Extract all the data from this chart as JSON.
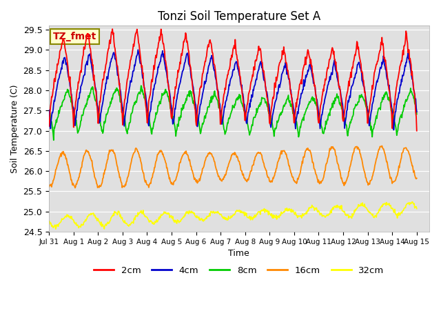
{
  "title": "Tonzi Soil Temperature Set A",
  "xlabel": "Time",
  "ylabel": "Soil Temperature (C)",
  "annotation": "TZ_fmet",
  "ylim": [
    24.5,
    29.6
  ],
  "xlim_days": 15.5,
  "bg_color": "#e0e0e0",
  "grid_color": "#ffffff",
  "series_colors": {
    "2cm": "#ff0000",
    "4cm": "#0000cc",
    "8cm": "#00cc00",
    "16cm": "#ff8800",
    "32cm": "#ffff00"
  },
  "x_tick_labels": [
    "Jul 31",
    "Aug 1",
    "Aug 2",
    "Aug 3",
    "Aug 4",
    "Aug 5",
    "Aug 6",
    "Aug 7",
    "Aug 8",
    "Aug 9",
    "Aug 10",
    "Aug 11",
    "Aug 12",
    "Aug 13",
    "Aug 14",
    "Aug 15"
  ],
  "x_tick_positions": [
    0,
    1,
    2,
    3,
    4,
    5,
    6,
    7,
    8,
    9,
    10,
    11,
    12,
    13,
    14,
    15
  ],
  "y_ticks": [
    24.5,
    25.0,
    25.5,
    26.0,
    26.5,
    27.0,
    27.5,
    28.0,
    28.5,
    29.0,
    29.5
  ]
}
